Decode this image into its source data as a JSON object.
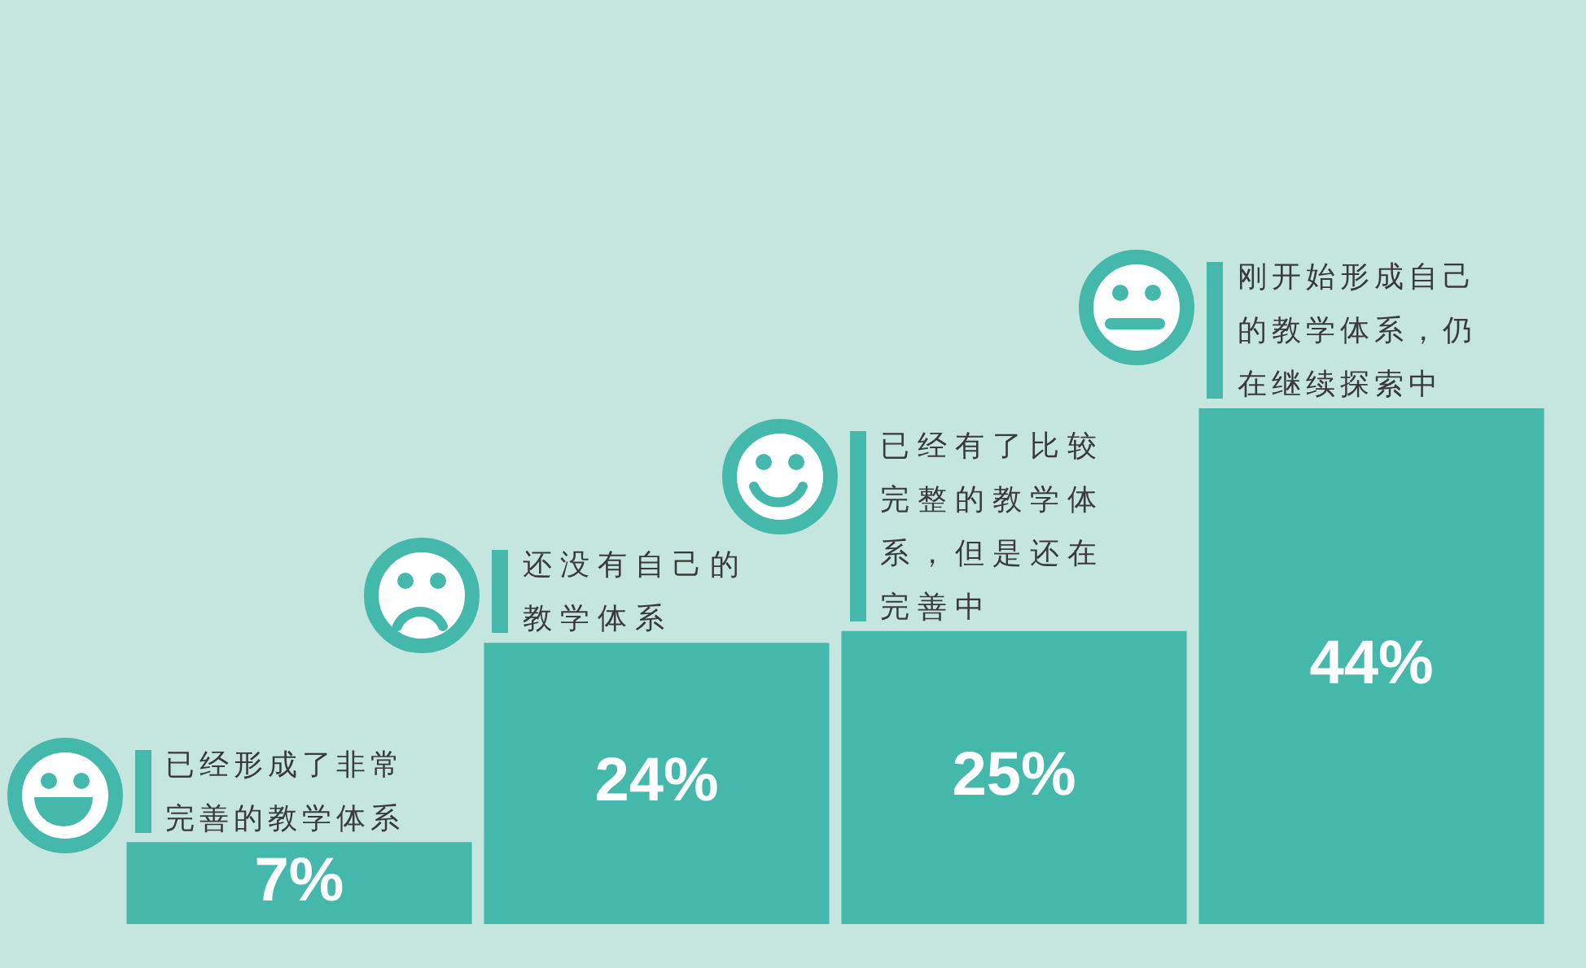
{
  "chart_data": {
    "type": "bar",
    "categories": [
      "已经形成了非常完善的教学体系",
      "还没有自己的教学体系",
      "已经有了比较完整的教学体系，但是还在完善中",
      "刚开始形成自己的教学体系，仍在继续探索中"
    ],
    "values": [
      7,
      24,
      25,
      44
    ],
    "value_labels": [
      "7%",
      "24%",
      "25%",
      "44%"
    ],
    "color": "#45b8ac"
  }
}
